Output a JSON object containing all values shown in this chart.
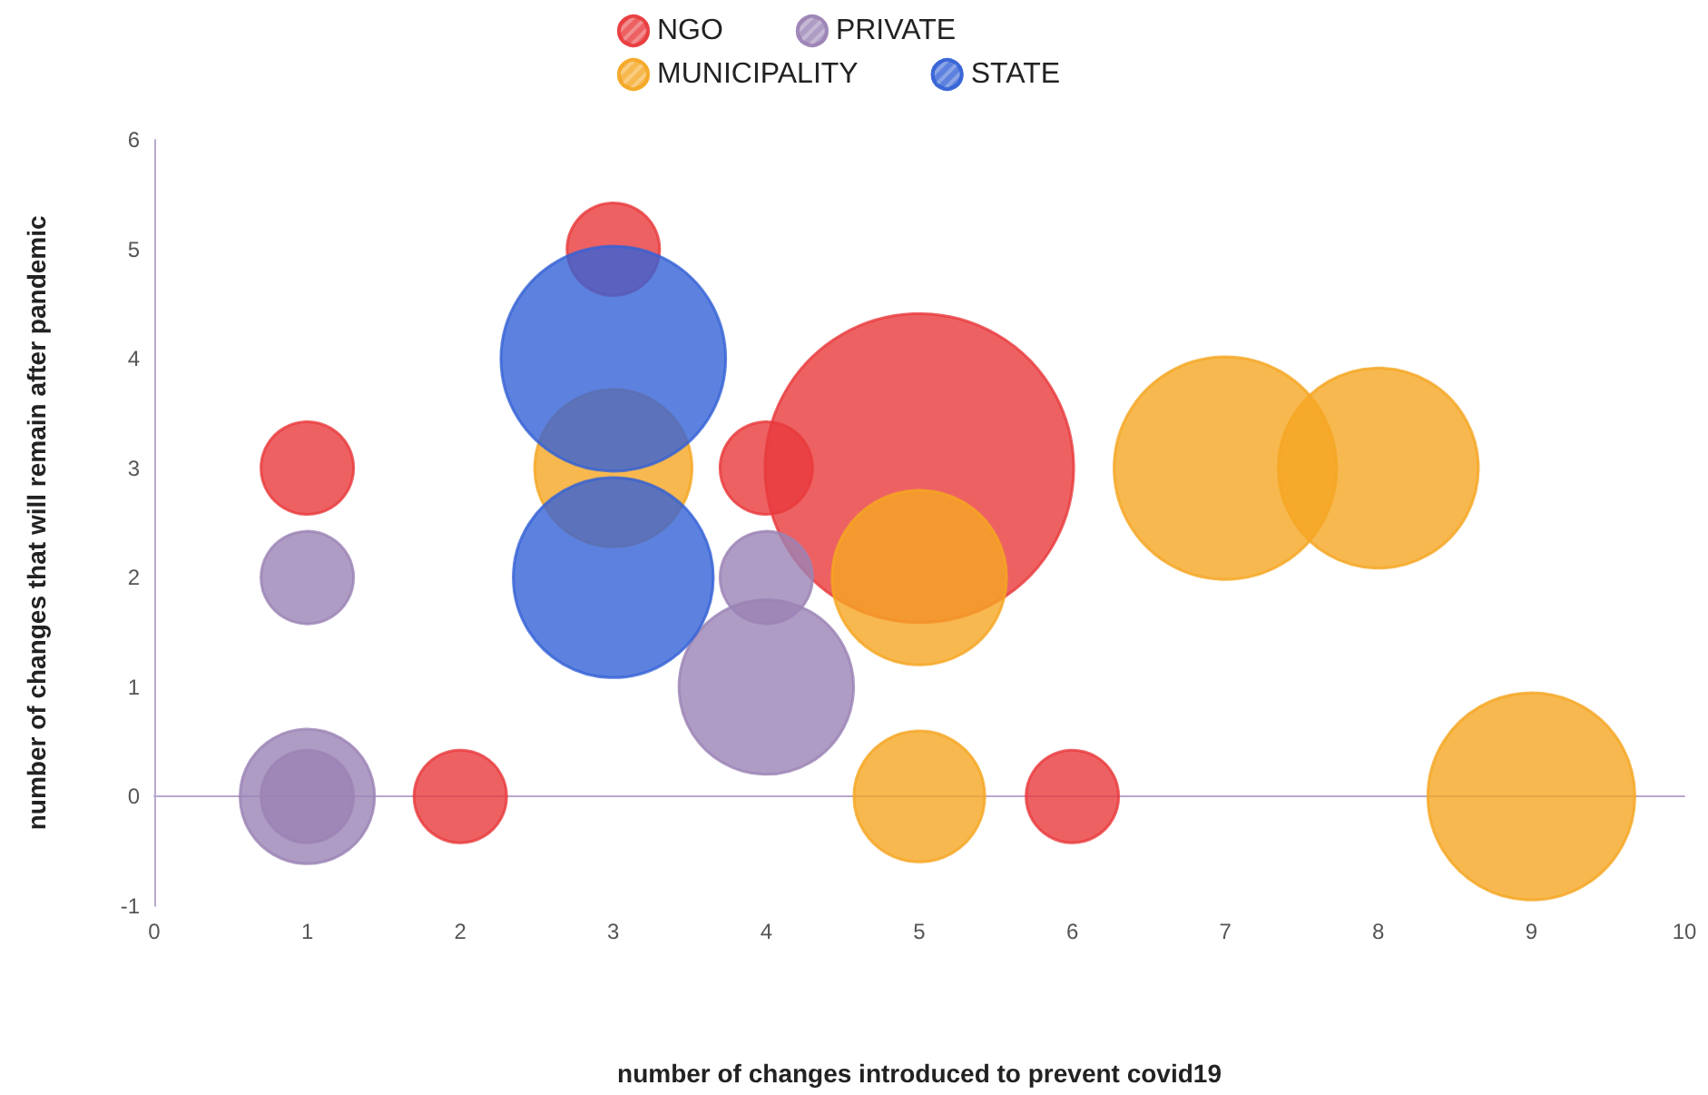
{
  "chart_data": {
    "type": "bubble",
    "xlabel": "number of changes introduced to prevent covid19",
    "ylabel": "number of changes that will remain after pandemic",
    "xlim": [
      0,
      10
    ],
    "xticks": [
      0,
      1,
      2,
      3,
      4,
      5,
      6,
      7,
      8,
      9,
      10
    ],
    "ylim": [
      -1,
      6
    ],
    "yticks": [
      -1,
      0,
      1,
      2,
      3,
      4,
      5,
      6
    ],
    "legend": "top",
    "marker": "circle",
    "series": [
      {
        "name": "NGO",
        "color": "#e8393c",
        "x": [
          3,
          1,
          4,
          5,
          2,
          6
        ],
        "values": [
          5,
          3,
          3,
          3,
          0,
          0
        ],
        "sizes": [
          0.09,
          0.09,
          0.09,
          1,
          0.09,
          0.09
        ]
      },
      {
        "name": "PRIVATE",
        "color": "#9b83b5",
        "x": [
          1,
          4,
          4,
          1,
          1
        ],
        "values": [
          2,
          2,
          1,
          0,
          0
        ],
        "sizes": [
          0.09,
          0.09,
          0.32,
          0.19,
          0.09
        ]
      },
      {
        "name": "MUNICIPALITY",
        "color": "#f5a623",
        "x": [
          3,
          5,
          7,
          8,
          5,
          9
        ],
        "values": [
          3,
          2,
          3,
          3,
          0,
          0
        ],
        "sizes": [
          0.26,
          0.32,
          0.52,
          0.42,
          0.18,
          0.45
        ]
      },
      {
        "name": "STATE",
        "color": "#3461d6",
        "x": [
          3,
          3
        ],
        "values": [
          4,
          2
        ],
        "sizes": [
          0.53,
          0.42
        ]
      }
    ]
  }
}
